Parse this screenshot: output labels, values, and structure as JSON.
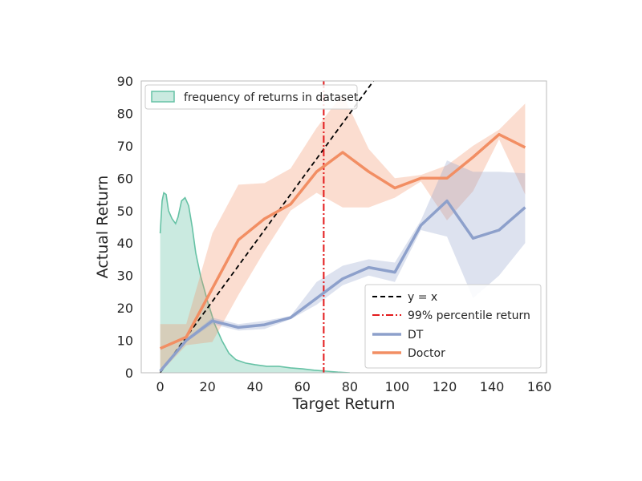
{
  "chart_data": {
    "type": "line",
    "xlabel": "Target Return",
    "ylabel": "Actual Return",
    "xlim": [
      -8,
      163
    ],
    "ylim": [
      0,
      90
    ],
    "xticks": [
      0,
      20,
      40,
      60,
      80,
      100,
      120,
      140,
      160
    ],
    "yticks": [
      0,
      10,
      20,
      30,
      40,
      50,
      60,
      70,
      80,
      90
    ],
    "grid": false,
    "legends": {
      "top_left": [
        "frequency of returns in dataset"
      ],
      "bottom_right": [
        "y = x",
        "99% percentile return",
        "DT",
        "Doctor"
      ]
    },
    "series": [
      {
        "name": "Doctor",
        "color": "#f28e63",
        "x": [
          0,
          11,
          22,
          33,
          44,
          55,
          66,
          77,
          88,
          99,
          110,
          121,
          132,
          143,
          154
        ],
        "y": [
          7.5,
          11,
          26,
          41,
          47.5,
          52,
          62,
          68,
          62,
          57,
          60,
          60,
          66.5,
          73.5,
          69.5
        ],
        "upper": [
          15,
          15,
          43,
          58,
          58.5,
          63,
          75.5,
          86,
          69,
          60,
          61,
          64,
          70,
          75,
          83
        ],
        "lower": [
          0,
          8.5,
          9.5,
          24,
          37.5,
          50,
          55.5,
          51,
          51,
          54,
          59,
          47,
          56,
          72,
          55
        ]
      },
      {
        "name": "DT",
        "color": "#8da0cb",
        "x": [
          0,
          11,
          22,
          33,
          44,
          55,
          66,
          77,
          88,
          99,
          110,
          121,
          132,
          143,
          154
        ],
        "y": [
          0.5,
          10,
          16,
          14,
          14.8,
          17,
          23,
          29,
          32.5,
          31,
          45.5,
          53,
          41.5,
          44,
          51
        ],
        "upper": [
          1,
          10.5,
          17,
          15,
          16,
          17.5,
          28,
          33,
          35,
          34,
          47,
          65.5,
          62,
          62,
          61.5
        ],
        "lower": [
          0,
          9.5,
          15,
          13,
          13.5,
          16.5,
          21,
          27,
          30,
          28,
          44,
          42,
          23,
          30,
          40
        ]
      },
      {
        "name": "y = x",
        "color": "#000000",
        "x": [
          0,
          90
        ],
        "y": [
          0,
          90
        ]
      },
      {
        "name": "99% percentile return",
        "color": "#e31a1c",
        "x_value": 69
      },
      {
        "name": "frequency of returns in dataset",
        "color": "#66c2a5",
        "x": [
          0,
          0.8,
          1.5,
          2.5,
          3.5,
          5,
          6.5,
          7.5,
          9,
          10.5,
          12,
          13.5,
          15,
          17,
          20,
          23,
          26,
          29,
          32,
          36,
          40,
          45,
          50,
          55,
          60,
          65,
          70,
          75,
          80
        ],
        "y": [
          43,
          53,
          55.5,
          55,
          50,
          47.5,
          46,
          48,
          53,
          54,
          51.5,
          45,
          37,
          30,
          22,
          15,
          10,
          6,
          4,
          3,
          2.5,
          2,
          2,
          1.5,
          1.2,
          0.8,
          0.5,
          0.2,
          0
        ]
      }
    ]
  }
}
